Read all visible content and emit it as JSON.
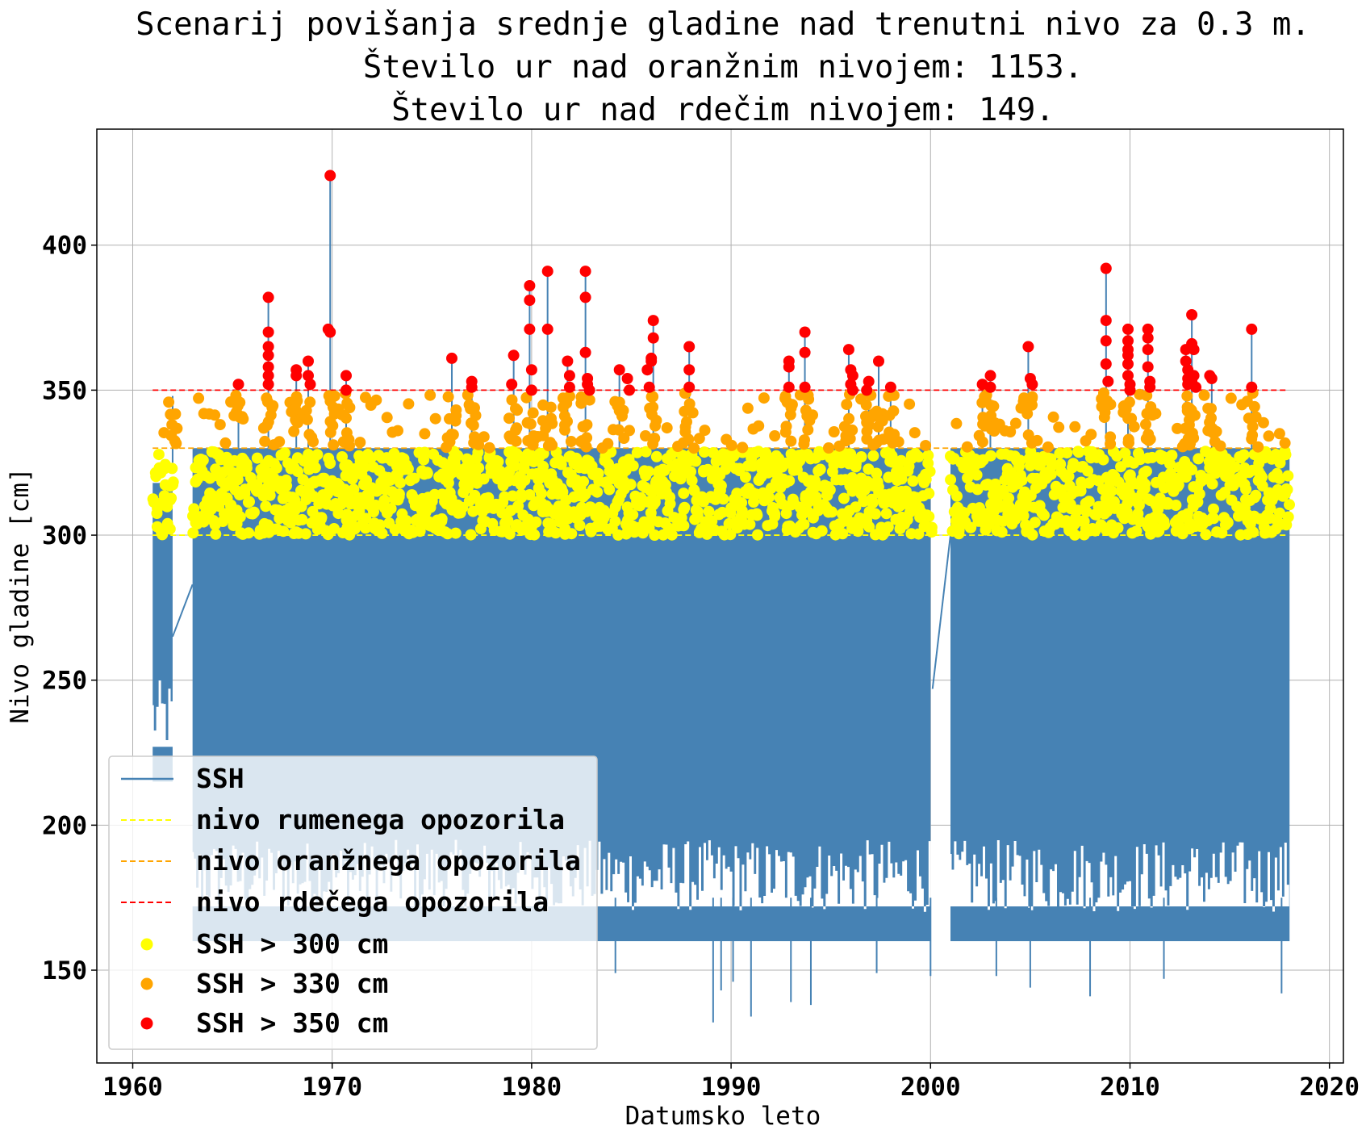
{
  "chart_data": {
    "type": "line",
    "title_lines": [
      "Scenarij povišanja srednje gladine nad trenutni nivo za 0.3 m.",
      "Število ur nad oranžnim nivojem: 1153.",
      "Število ur nad rdečim nivojem: 149."
    ],
    "xlabel": "Datumsko leto",
    "ylabel": "Nivo gladine [cm]",
    "xlim": [
      1958.2,
      2020.7
    ],
    "ylim": [
      118,
      440
    ],
    "xticks": [
      1960,
      1970,
      1980,
      1990,
      2000,
      2010,
      2020
    ],
    "yticks": [
      150,
      200,
      250,
      300,
      350,
      400
    ],
    "grid": true,
    "legend_position": "lower-left",
    "colors": {
      "ssh": "#4682b4",
      "yellow": "#ffff00",
      "orange": "#ffa500",
      "red": "#ff0000"
    },
    "threshold_lines": [
      {
        "name": "nivo rumenega opozorila",
        "y": 300,
        "color": "#ffff00"
      },
      {
        "name": "nivo oranžnega opozorila",
        "y": 330,
        "color": "#ffa500"
      },
      {
        "name": "nivo rdečega opozorila",
        "y": 350,
        "color": "#ff0000"
      }
    ],
    "ssh_segments": [
      {
        "x": [
          1961.0,
          1962.0
        ],
        "ymin": 215,
        "ymax": 318
      },
      {
        "x": [
          1963.0,
          2000.0
        ],
        "ymin": 160,
        "ymax": 330
      },
      {
        "x": [
          2001.0,
          2018.0
        ],
        "ymin": 160,
        "ymax": 330
      }
    ],
    "series": [
      {
        "name": "SSH",
        "type": "line",
        "color": "#4682b4"
      },
      {
        "name": "SSH > 300 cm",
        "type": "scatter",
        "color": "#ffff00"
      },
      {
        "name": "SSH > 330 cm",
        "type": "scatter",
        "color": "#ffa500"
      },
      {
        "name": "SSH > 350 cm",
        "type": "scatter",
        "color": "#ff0000"
      }
    ],
    "ssh_low_spikes": [
      [
        1984.2,
        149
      ],
      [
        1989.1,
        132
      ],
      [
        1989.5,
        143
      ],
      [
        1990.1,
        146
      ],
      [
        1991.0,
        134
      ],
      [
        1993.0,
        139
      ],
      [
        1994.0,
        138
      ],
      [
        1997.3,
        149
      ],
      [
        2000.0,
        148
      ],
      [
        2003.3,
        148
      ],
      [
        2005.0,
        144
      ],
      [
        2008.0,
        141
      ],
      [
        2011.7,
        147
      ],
      [
        2017.6,
        142
      ]
    ],
    "ssh_high_peaks": [
      [
        1962.0,
        348
      ],
      [
        1965.3,
        352
      ],
      [
        1966.8,
        382
      ],
      [
        1968.2,
        357
      ],
      [
        1968.8,
        360
      ],
      [
        1969.9,
        424
      ],
      [
        1970.7,
        355
      ],
      [
        1976.0,
        361
      ],
      [
        1977.0,
        353
      ],
      [
        1979.1,
        362
      ],
      [
        1979.9,
        386
      ],
      [
        1980.8,
        391
      ],
      [
        1981.8,
        360
      ],
      [
        1982.7,
        391
      ],
      [
        1984.4,
        357
      ],
      [
        1986.1,
        374
      ],
      [
        1987.9,
        365
      ],
      [
        1992.9,
        360
      ],
      [
        1993.7,
        370
      ],
      [
        1995.9,
        364
      ],
      [
        1996.9,
        353
      ],
      [
        1997.4,
        360
      ],
      [
        1998.0,
        351
      ],
      [
        2002.6,
        352
      ],
      [
        2003.0,
        355
      ],
      [
        2004.9,
        365
      ],
      [
        2008.8,
        392
      ],
      [
        2009.9,
        371
      ],
      [
        2010.9,
        371
      ],
      [
        2012.8,
        364
      ],
      [
        2013.1,
        376
      ],
      [
        2014.1,
        355
      ],
      [
        2016.1,
        371
      ]
    ],
    "points_gt_350": [
      [
        1966.8,
        382
      ],
      [
        1966.8,
        370
      ],
      [
        1966.8,
        365
      ],
      [
        1966.8,
        362
      ],
      [
        1966.8,
        358
      ],
      [
        1966.8,
        355
      ],
      [
        1966.8,
        352
      ],
      [
        1965.3,
        352
      ],
      [
        1968.2,
        357
      ],
      [
        1968.2,
        355
      ],
      [
        1968.8,
        360
      ],
      [
        1968.8,
        355
      ],
      [
        1968.9,
        352
      ],
      [
        1969.9,
        424
      ],
      [
        1969.8,
        371
      ],
      [
        1969.9,
        370
      ],
      [
        1970.7,
        355
      ],
      [
        1970.7,
        350
      ],
      [
        1976.0,
        361
      ],
      [
        1977.0,
        353
      ],
      [
        1977.0,
        351
      ],
      [
        1979.1,
        362
      ],
      [
        1979.0,
        352
      ],
      [
        1979.9,
        386
      ],
      [
        1979.9,
        381
      ],
      [
        1979.9,
        371
      ],
      [
        1980.0,
        357
      ],
      [
        1980.0,
        350
      ],
      [
        1980.8,
        391
      ],
      [
        1980.8,
        371
      ],
      [
        1981.8,
        360
      ],
      [
        1981.9,
        355
      ],
      [
        1981.9,
        351
      ],
      [
        1982.7,
        391
      ],
      [
        1982.7,
        382
      ],
      [
        1982.7,
        363
      ],
      [
        1982.8,
        354
      ],
      [
        1982.8,
        352
      ],
      [
        1982.9,
        350
      ],
      [
        1984.4,
        357
      ],
      [
        1984.8,
        354
      ],
      [
        1984.9,
        350
      ],
      [
        1985.8,
        357
      ],
      [
        1986.0,
        361
      ],
      [
        1986.1,
        374
      ],
      [
        1986.1,
        368
      ],
      [
        1986.0,
        360
      ],
      [
        1985.9,
        351
      ],
      [
        1987.9,
        365
      ],
      [
        1987.9,
        357
      ],
      [
        1987.9,
        351
      ],
      [
        1992.9,
        360
      ],
      [
        1992.9,
        358
      ],
      [
        1992.9,
        351
      ],
      [
        1993.7,
        370
      ],
      [
        1993.7,
        363
      ],
      [
        1993.7,
        351
      ],
      [
        1995.9,
        364
      ],
      [
        1996.0,
        357
      ],
      [
        1996.1,
        355
      ],
      [
        1996.0,
        352
      ],
      [
        1996.1,
        350
      ],
      [
        1996.9,
        353
      ],
      [
        1996.8,
        350
      ],
      [
        1997.4,
        360
      ],
      [
        1998.0,
        351
      ],
      [
        2002.6,
        352
      ],
      [
        2003.0,
        355
      ],
      [
        2003.0,
        351
      ],
      [
        2004.9,
        365
      ],
      [
        2005.0,
        354
      ],
      [
        2005.1,
        352
      ],
      [
        2008.8,
        392
      ],
      [
        2008.8,
        374
      ],
      [
        2008.8,
        367
      ],
      [
        2008.8,
        359
      ],
      [
        2008.9,
        353
      ],
      [
        2009.9,
        371
      ],
      [
        2009.9,
        367
      ],
      [
        2009.9,
        364
      ],
      [
        2009.9,
        362
      ],
      [
        2009.9,
        359
      ],
      [
        2009.9,
        355
      ],
      [
        2010.0,
        352
      ],
      [
        2010.0,
        350
      ],
      [
        2010.9,
        371
      ],
      [
        2010.9,
        368
      ],
      [
        2010.9,
        364
      ],
      [
        2010.9,
        358
      ],
      [
        2011.0,
        353
      ],
      [
        2011.0,
        351
      ],
      [
        2012.8,
        364
      ],
      [
        2012.8,
        360
      ],
      [
        2012.9,
        357
      ],
      [
        2012.9,
        354
      ],
      [
        2012.9,
        352
      ],
      [
        2013.1,
        376
      ],
      [
        2013.1,
        366
      ],
      [
        2013.2,
        364
      ],
      [
        2013.2,
        355
      ],
      [
        2013.1,
        353
      ],
      [
        2013.3,
        351
      ],
      [
        2014.0,
        355
      ],
      [
        2014.1,
        354
      ],
      [
        2016.1,
        371
      ],
      [
        2016.1,
        351
      ]
    ]
  }
}
